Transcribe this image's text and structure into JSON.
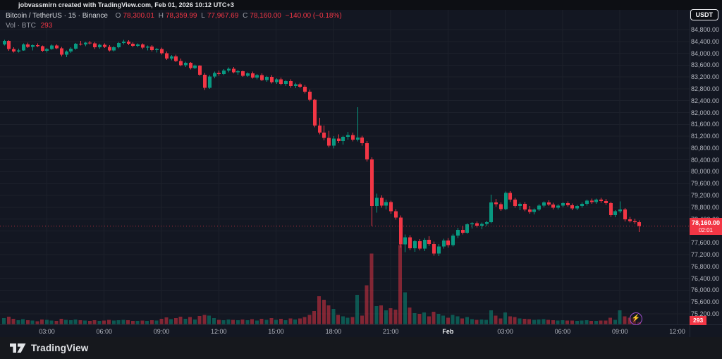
{
  "attribution": "jobvassmirn created with TradingView.com, Feb 01, 2026 10:12 UTC+3",
  "header": {
    "symbol_line": "Bitcoin / TetherUS · 15 · Binance",
    "ohlc": {
      "o_label": "O",
      "o": "78,300.01",
      "h_label": "H",
      "h": "78,359.99",
      "l_label": "L",
      "l": "77,967.69",
      "c_label": "C",
      "c": "78,160.00",
      "change": "−140.00 (−0.18%)"
    },
    "vol_label": "Vol · BTC",
    "vol_value": "293"
  },
  "usdt_button": "USDT",
  "price_badge": {
    "price": "78,160.00",
    "countdown": "02:01"
  },
  "volume_badge": "293",
  "logo_text": "TradingView",
  "lightning_icon": "⚡",
  "colors": {
    "up": "#089981",
    "down": "#f23645",
    "grid": "#1c202b",
    "axis_text": "#b2b5be",
    "background": "#131722",
    "badge": "#f23645"
  },
  "chart_data": {
    "type": "candlestick",
    "symbol": "Bitcoin / TetherUS",
    "exchange": "Binance",
    "interval_minutes": 15,
    "last_price": 78160,
    "price_axis": {
      "min": 75200,
      "max": 84800,
      "step": 400,
      "ticks": [
        84800,
        84400,
        84000,
        83600,
        83200,
        82800,
        82400,
        82000,
        81600,
        81200,
        80800,
        80400,
        80000,
        79600,
        79200,
        78800,
        78400,
        77600,
        77200,
        76800,
        76400,
        76000,
        75600,
        75200
      ]
    },
    "time_labels": [
      {
        "label": "03:00",
        "slot": 9
      },
      {
        "label": "06:00",
        "slot": 21
      },
      {
        "label": "09:00",
        "slot": 33
      },
      {
        "label": "12:00",
        "slot": 45
      },
      {
        "label": "15:00",
        "slot": 57
      },
      {
        "label": "18:00",
        "slot": 69
      },
      {
        "label": "21:00",
        "slot": 81
      },
      {
        "label": "Feb",
        "slot": 93,
        "bold": true
      },
      {
        "label": "03:00",
        "slot": 105
      },
      {
        "label": "06:00",
        "slot": 117
      },
      {
        "label": "09:00",
        "slot": 129
      },
      {
        "label": "12:00",
        "slot": 141
      }
    ],
    "candles_format": [
      "open",
      "high",
      "low",
      "close",
      "volume"
    ],
    "candles": [
      [
        84300,
        84450,
        84260,
        84420,
        840
      ],
      [
        84420,
        84440,
        84080,
        84140,
        1040
      ],
      [
        84140,
        84200,
        84020,
        84060,
        760
      ],
      [
        84060,
        84160,
        84020,
        84100,
        520
      ],
      [
        84100,
        84340,
        84080,
        84300,
        680
      ],
      [
        84300,
        84360,
        84180,
        84220,
        560
      ],
      [
        84220,
        84300,
        84100,
        84280,
        480
      ],
      [
        84280,
        84330,
        84200,
        84240,
        400
      ],
      [
        84240,
        84260,
        84050,
        84090,
        620
      ],
      [
        84090,
        84180,
        84030,
        84150,
        580
      ],
      [
        84150,
        84300,
        84120,
        84260,
        500
      ],
      [
        84260,
        84300,
        84140,
        84170,
        460
      ],
      [
        84170,
        84220,
        83900,
        83950,
        720
      ],
      [
        83950,
        84100,
        83870,
        84060,
        600
      ],
      [
        84060,
        84200,
        84010,
        84160,
        540
      ],
      [
        84160,
        84350,
        84120,
        84320,
        620
      ],
      [
        84320,
        84420,
        84260,
        84300,
        560
      ],
      [
        84300,
        84380,
        84240,
        84360,
        480
      ],
      [
        84360,
        84420,
        84300,
        84330,
        440
      ],
      [
        84330,
        84380,
        84150,
        84200,
        520
      ],
      [
        84200,
        84320,
        84160,
        84290,
        460
      ],
      [
        84290,
        84340,
        84180,
        84220,
        500
      ],
      [
        84220,
        84280,
        84060,
        84100,
        580
      ],
      [
        84100,
        84240,
        84060,
        84200,
        480
      ],
      [
        84200,
        84380,
        84170,
        84350,
        520
      ],
      [
        84350,
        84450,
        84300,
        84400,
        600
      ],
      [
        84400,
        84440,
        84280,
        84320,
        540
      ],
      [
        84320,
        84370,
        84200,
        84250,
        460
      ],
      [
        84250,
        84330,
        84210,
        84300,
        420
      ],
      [
        84300,
        84340,
        84150,
        84190,
        500
      ],
      [
        84190,
        84260,
        84100,
        84230,
        440
      ],
      [
        84230,
        84280,
        84060,
        84110,
        520
      ],
      [
        84110,
        84180,
        84020,
        84150,
        480
      ],
      [
        84150,
        84190,
        83950,
        84000,
        760
      ],
      [
        84000,
        84060,
        83780,
        83820,
        920
      ],
      [
        83820,
        83940,
        83760,
        83900,
        680
      ],
      [
        83900,
        83950,
        83700,
        83740,
        840
      ],
      [
        83740,
        83820,
        83560,
        83600,
        1040
      ],
      [
        83600,
        83720,
        83540,
        83680,
        720
      ],
      [
        83680,
        83700,
        83450,
        83500,
        960
      ],
      [
        83500,
        83620,
        83460,
        83580,
        640
      ],
      [
        83580,
        83600,
        83240,
        83280,
        1120
      ],
      [
        83280,
        83340,
        82760,
        82840,
        1280
      ],
      [
        82840,
        83260,
        82800,
        83220,
        1160
      ],
      [
        83220,
        83380,
        83160,
        83340,
        840
      ],
      [
        83340,
        83420,
        83240,
        83300,
        600
      ],
      [
        83300,
        83460,
        83260,
        83420,
        560
      ],
      [
        83420,
        83520,
        83360,
        83480,
        620
      ],
      [
        83480,
        83540,
        83320,
        83360,
        580
      ],
      [
        83360,
        83440,
        83280,
        83400,
        520
      ],
      [
        83400,
        83420,
        83200,
        83240,
        660
      ],
      [
        83240,
        83360,
        83200,
        83320,
        540
      ],
      [
        83320,
        83380,
        83140,
        83180,
        700
      ],
      [
        83180,
        83300,
        83120,
        83260,
        480
      ],
      [
        83260,
        83320,
        83060,
        83100,
        760
      ],
      [
        83100,
        83240,
        83040,
        83200,
        580
      ],
      [
        83200,
        83260,
        82980,
        83020,
        820
      ],
      [
        83020,
        83160,
        82960,
        83120,
        600
      ],
      [
        83120,
        83180,
        82920,
        82960,
        740
      ],
      [
        82960,
        83100,
        82900,
        83060,
        560
      ],
      [
        83060,
        83120,
        82840,
        82890,
        780
      ],
      [
        82890,
        83000,
        82820,
        82950,
        620
      ],
      [
        82950,
        83000,
        82820,
        82870,
        800
      ],
      [
        82870,
        82930,
        82640,
        82700,
        960
      ],
      [
        82700,
        82780,
        82380,
        82430,
        1280
      ],
      [
        82430,
        82470,
        81500,
        81560,
        1800
      ],
      [
        81560,
        81820,
        81260,
        81320,
        3900
      ],
      [
        81320,
        81560,
        81060,
        81140,
        3400
      ],
      [
        81140,
        81380,
        80820,
        80880,
        2600
      ],
      [
        80880,
        81200,
        80780,
        81120,
        2100
      ],
      [
        81120,
        81260,
        80960,
        81040,
        1300
      ],
      [
        81040,
        81220,
        80920,
        81180,
        1100
      ],
      [
        81180,
        81340,
        81080,
        81240,
        900
      ],
      [
        81240,
        81320,
        81020,
        81080,
        1000
      ],
      [
        81080,
        82180,
        81020,
        81160,
        4100
      ],
      [
        81160,
        81220,
        80880,
        80960,
        1200
      ],
      [
        80960,
        81040,
        80340,
        80420,
        5400
      ],
      [
        80420,
        80490,
        78170,
        78850,
        9800
      ],
      [
        78850,
        79260,
        78620,
        79120,
        2500
      ],
      [
        79120,
        79200,
        78780,
        78860,
        2600
      ],
      [
        78860,
        79060,
        78720,
        78980,
        1900
      ],
      [
        78980,
        79020,
        78580,
        78660,
        2200
      ],
      [
        78660,
        78740,
        78380,
        78450,
        2000
      ],
      [
        78450,
        78520,
        77440,
        77550,
        11000
      ],
      [
        77550,
        77880,
        77280,
        77780,
        4400
      ],
      [
        77780,
        77850,
        77350,
        77420,
        2300
      ],
      [
        77420,
        77700,
        77300,
        77650,
        1500
      ],
      [
        77650,
        77720,
        77340,
        77400,
        1400
      ],
      [
        77400,
        77760,
        77320,
        77700,
        1600
      ],
      [
        77700,
        77820,
        77500,
        77560,
        1100
      ],
      [
        77560,
        77640,
        77160,
        77240,
        1700
      ],
      [
        77240,
        77560,
        77150,
        77480,
        1400
      ],
      [
        77480,
        77740,
        77400,
        77680,
        1200
      ],
      [
        77680,
        77760,
        77440,
        77520,
        900
      ],
      [
        77520,
        77900,
        77480,
        77840,
        1300
      ],
      [
        77840,
        78100,
        77760,
        78040,
        1100
      ],
      [
        78040,
        78180,
        77880,
        77940,
        800
      ],
      [
        77940,
        78260,
        77900,
        78220,
        1000
      ],
      [
        78220,
        78300,
        78080,
        78260,
        700
      ],
      [
        78260,
        78320,
        78120,
        78180,
        600
      ],
      [
        78180,
        78280,
        78060,
        78240,
        650
      ],
      [
        78240,
        78340,
        78160,
        78300,
        600
      ],
      [
        78300,
        79230,
        78260,
        78960,
        1900
      ],
      [
        78960,
        79080,
        78820,
        78900,
        1200
      ],
      [
        78900,
        78960,
        78680,
        78740,
        800
      ],
      [
        78740,
        79330,
        78700,
        79290,
        1600
      ],
      [
        79290,
        79340,
        78980,
        79060,
        1100
      ],
      [
        79060,
        79120,
        78780,
        78840,
        1000
      ],
      [
        78840,
        78960,
        78700,
        78920,
        800
      ],
      [
        78920,
        78980,
        78660,
        78720,
        750
      ],
      [
        78720,
        78840,
        78580,
        78640,
        700
      ],
      [
        78640,
        78760,
        78560,
        78730,
        600
      ],
      [
        78730,
        78900,
        78680,
        78860,
        650
      ],
      [
        78860,
        79000,
        78800,
        78960,
        700
      ],
      [
        78960,
        79040,
        78840,
        78890,
        600
      ],
      [
        78890,
        78950,
        78730,
        78790,
        550
      ],
      [
        78790,
        78900,
        78720,
        78860,
        500
      ],
      [
        78860,
        78980,
        78800,
        78940,
        520
      ],
      [
        78940,
        79000,
        78820,
        78870,
        480
      ],
      [
        78870,
        78930,
        78700,
        78760,
        500
      ],
      [
        78760,
        78880,
        78700,
        78840,
        450
      ],
      [
        78840,
        78960,
        78780,
        78920,
        480
      ],
      [
        78920,
        79060,
        78860,
        79020,
        520
      ],
      [
        79020,
        79100,
        78920,
        78980,
        460
      ],
      [
        78980,
        79100,
        78920,
        79060,
        440
      ],
      [
        79060,
        79120,
        78950,
        79010,
        500
      ],
      [
        79010,
        79080,
        78880,
        78940,
        480
      ],
      [
        78940,
        78990,
        78480,
        78540,
        900
      ],
      [
        78540,
        78700,
        78460,
        78660,
        600
      ],
      [
        78660,
        79000,
        78600,
        78720,
        1900
      ],
      [
        78720,
        78770,
        78320,
        78390,
        1100
      ],
      [
        78390,
        78480,
        78280,
        78330,
        900
      ],
      [
        78330,
        78420,
        78240,
        78300,
        800
      ],
      [
        78300,
        78360,
        77968,
        78160,
        293
      ]
    ]
  }
}
